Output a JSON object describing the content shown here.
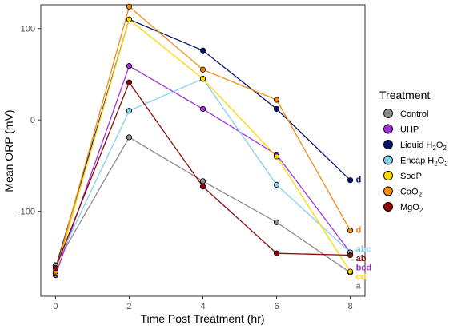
{
  "chart_data": {
    "type": "line",
    "xlabel": "Time Post Treatment (hr)",
    "ylabel": "Mean ORP (mV)",
    "x": [
      0,
      2,
      4,
      6,
      8
    ],
    "x_ticks": [
      "0",
      "2",
      "4",
      "6",
      "8"
    ],
    "y_ticks": [
      -100,
      0,
      100
    ],
    "y_tick_labels": [
      "-100",
      "0",
      "100"
    ],
    "xlim": [
      -0.4,
      8.4
    ],
    "ylim": [
      -193,
      126
    ],
    "grid": false,
    "legend": {
      "title": "Treatment",
      "position": "right"
    },
    "series": [
      {
        "name": "Control",
        "name_main": "Control",
        "name_sub": "",
        "name_tail": "",
        "color": "#8c8c8c",
        "values": [
          -159,
          -19,
          -67,
          -112,
          -167
        ],
        "letter": "a",
        "letter_y": -181
      },
      {
        "name": "UHP",
        "name_main": "UHP",
        "name_sub": "",
        "name_tail": "",
        "color": "#a032dc",
        "values": [
          -170,
          59,
          12,
          -38,
          -145
        ],
        "letter": "bcd",
        "letter_y": -161
      },
      {
        "name": "Liquid H2O2",
        "name_main": "Liquid H",
        "name_sub": "2",
        "name_tail": "O",
        "name_sub2": "2",
        "color": "#0a1470",
        "values": [
          -162,
          110,
          76,
          12,
          -66
        ],
        "letter": "d",
        "letter_y": -65
      },
      {
        "name": "Encap H2O2",
        "name_main": "Encap H",
        "name_sub": "2",
        "name_tail": "O",
        "name_sub2": "2",
        "color": "#87ceeb",
        "values": [
          -160,
          10,
          45,
          -71,
          -145
        ],
        "letter": "abc",
        "letter_y": -141
      },
      {
        "name": "SodP",
        "name_main": "SodP",
        "name_sub": "",
        "name_tail": "",
        "color": "#ffd700",
        "values": [
          -168,
          110,
          45,
          -40,
          -166
        ],
        "letter": "cd",
        "letter_y": -171
      },
      {
        "name": "CaO2",
        "name_main": "CaO",
        "name_sub": "2",
        "name_tail": "",
        "color": "#f08a10",
        "values": [
          -166,
          124,
          55,
          22,
          -121
        ],
        "letter": "d",
        "letter_y": -120
      },
      {
        "name": "MgO2",
        "name_main": "MgO",
        "name_sub": "2",
        "name_tail": "",
        "color": "#8b0a0a",
        "values": [
          -162,
          41,
          -73,
          -146,
          -148
        ],
        "letter": "ab",
        "letter_y": -151
      }
    ]
  }
}
